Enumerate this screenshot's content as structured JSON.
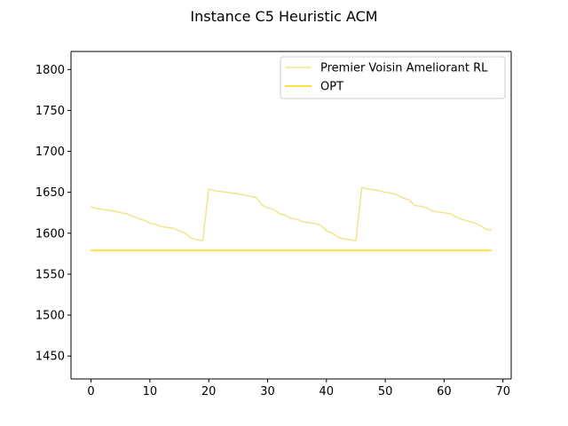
{
  "chart_data": {
    "type": "line",
    "title": "Instance C5 Heuristic ACM",
    "xlabel": "",
    "ylabel": "",
    "xlim": [
      -3.4,
      71.4
    ],
    "ylim": [
      1422,
      1822
    ],
    "xticks": [
      0,
      10,
      20,
      30,
      40,
      50,
      60,
      70
    ],
    "yticks": [
      1450,
      1500,
      1550,
      1600,
      1650,
      1700,
      1750,
      1800
    ],
    "legend_position": "top-right",
    "grid": false,
    "series": [
      {
        "name": "Premier Voisin Ameliorant RL",
        "color": "#f0e68c",
        "x": [
          0,
          1,
          2,
          3,
          4,
          5,
          6,
          7,
          8,
          9,
          10,
          11,
          12,
          13,
          14,
          15,
          16,
          17,
          18,
          19,
          20,
          21,
          22,
          23,
          24,
          25,
          26,
          27,
          28,
          29,
          30,
          31,
          32,
          33,
          34,
          35,
          36,
          37,
          38,
          39,
          40,
          41,
          42,
          43,
          44,
          45,
          46,
          47,
          48,
          49,
          50,
          51,
          52,
          53,
          54,
          55,
          56,
          57,
          58,
          59,
          60,
          61,
          62,
          63,
          64,
          65,
          66,
          67,
          68
        ],
        "y": [
          1632,
          1630,
          1629,
          1628,
          1627,
          1625,
          1624,
          1621,
          1618,
          1616,
          1612,
          1611,
          1608,
          1607,
          1606,
          1603,
          1600,
          1594,
          1592,
          1591,
          1654,
          1652,
          1651,
          1650,
          1649,
          1648,
          1647,
          1645,
          1644,
          1635,
          1631,
          1629,
          1624,
          1622,
          1618,
          1617,
          1614,
          1613,
          1612,
          1610,
          1603,
          1600,
          1595,
          1593,
          1592,
          1591,
          1656,
          1654,
          1653,
          1652,
          1650,
          1649,
          1647,
          1643,
          1641,
          1634,
          1633,
          1631,
          1627,
          1626,
          1625,
          1624,
          1620,
          1617,
          1615,
          1613,
          1610,
          1605,
          1604
        ]
      },
      {
        "name": "OPT",
        "color": "#ffd700",
        "x": [
          0,
          68
        ],
        "y": [
          1579,
          1579
        ]
      }
    ]
  }
}
